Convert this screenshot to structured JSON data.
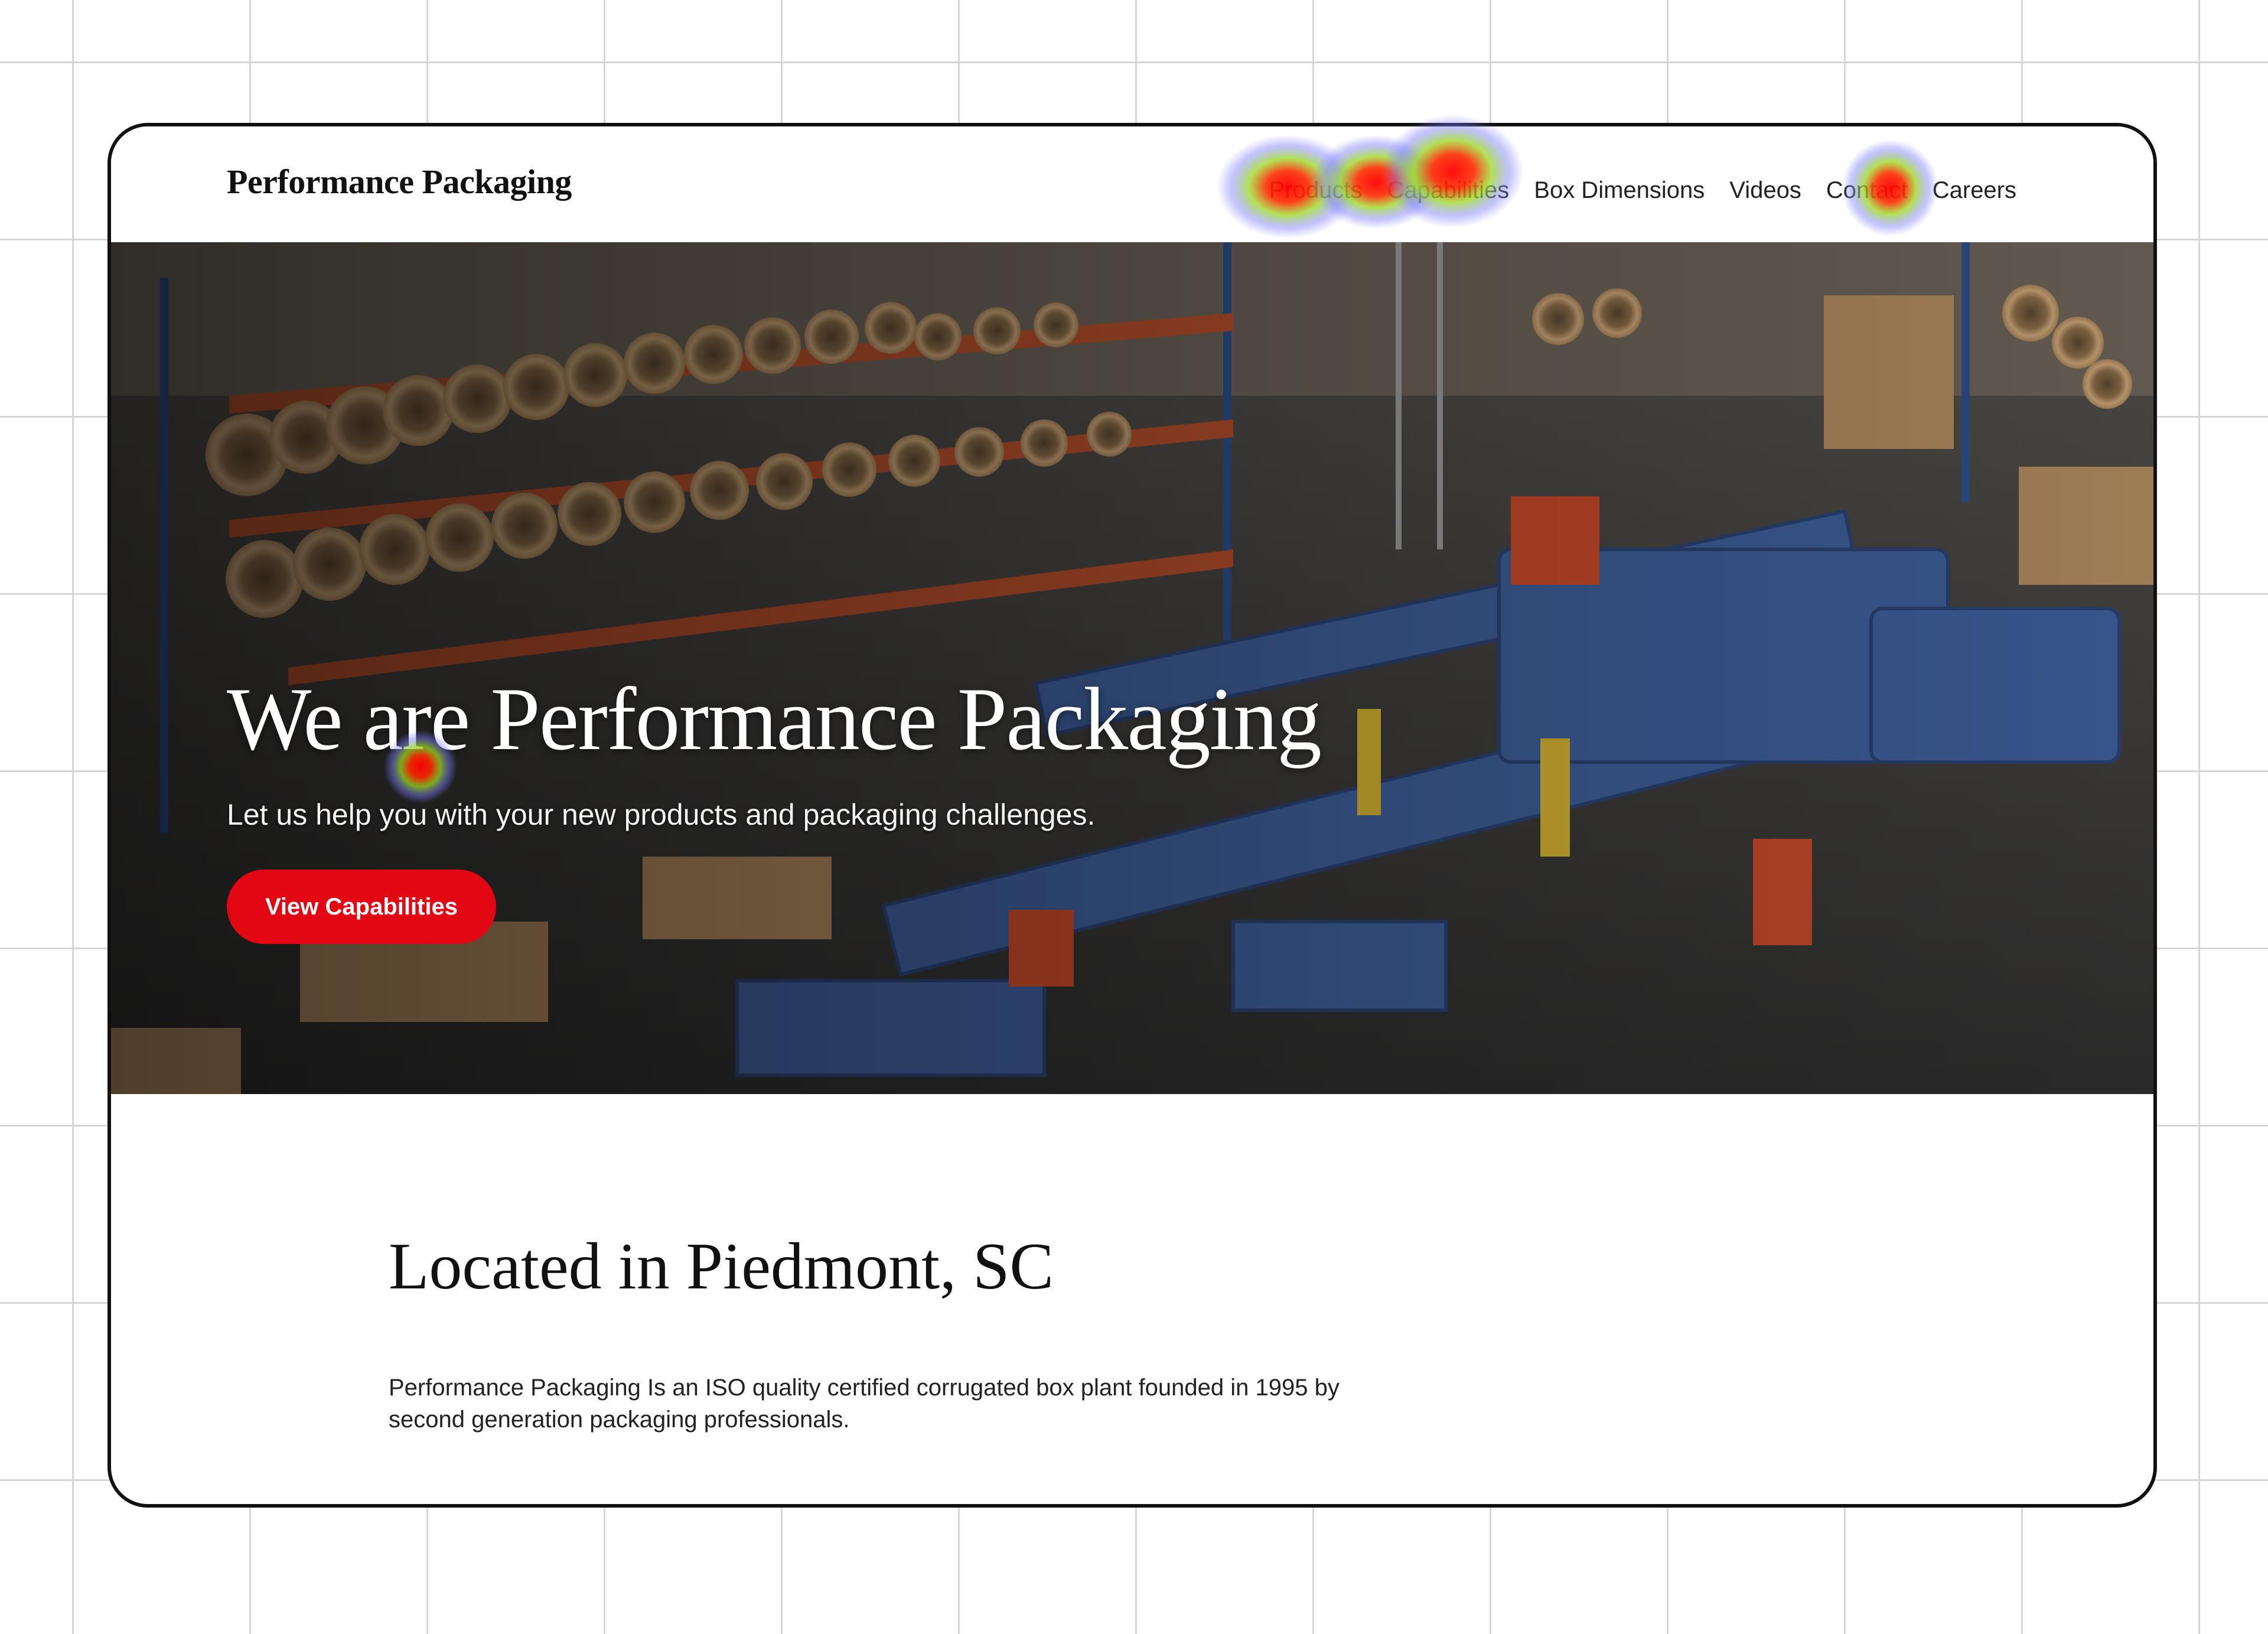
{
  "site": {
    "logo": "Performance Packaging"
  },
  "nav": {
    "items": [
      "Products",
      "Capabilities",
      "Box Dimensions",
      "Videos",
      "Contact",
      "Careers"
    ]
  },
  "hero": {
    "title": "We are Performance Packaging",
    "subtitle": "Let us help you with your new products and packaging challenges.",
    "cta_label": "View Capabilities"
  },
  "about": {
    "title": "Located in Piedmont, SC",
    "body": "Performance Packaging Is an ISO quality certified corrugated box plant founded in 1995 by second generation packaging professionals."
  },
  "colors": {
    "accent": "#e30613",
    "text": "#111111",
    "frame_border": "#111111"
  }
}
